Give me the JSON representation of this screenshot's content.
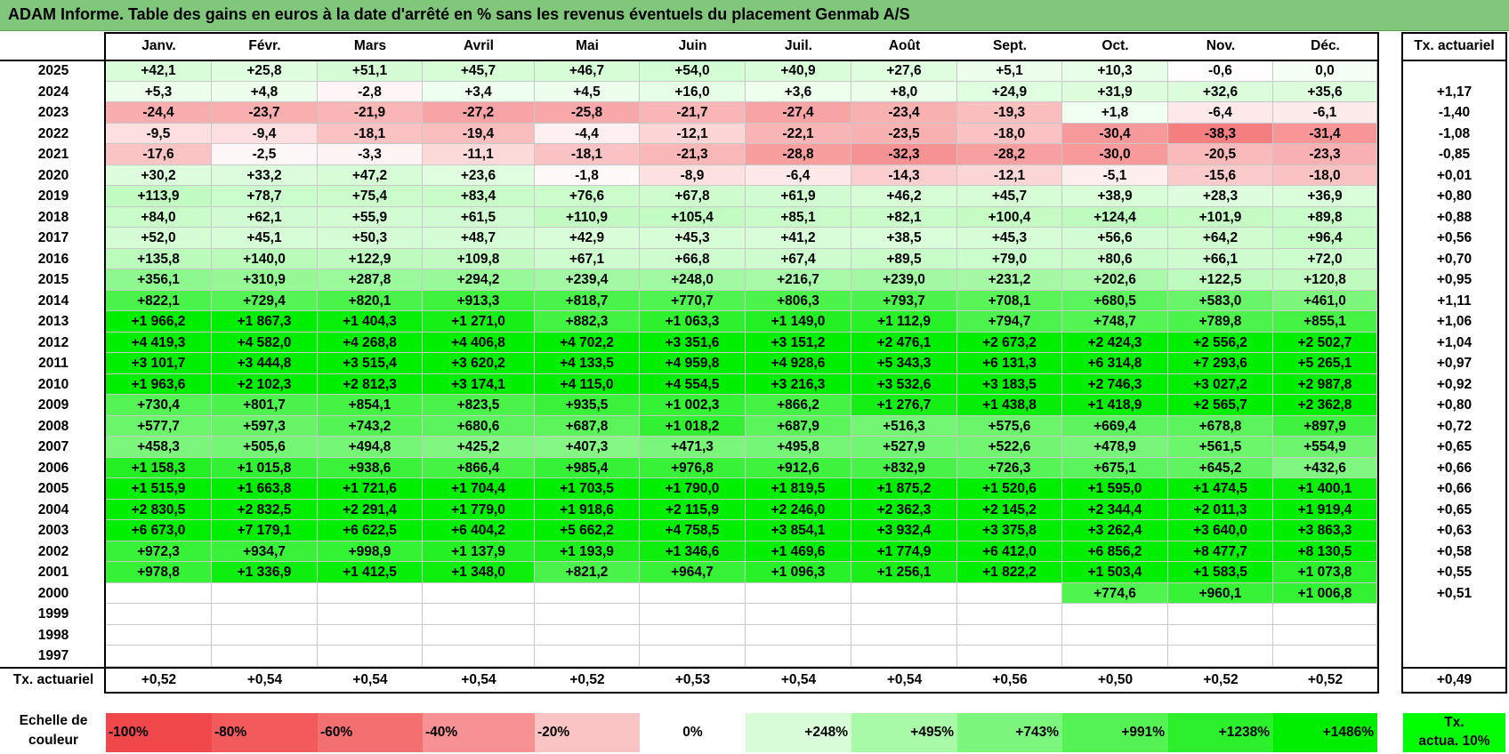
{
  "title": "ADAM Informe. Table des gains en euros à la date d'arrêté en % sans les revenus éventuels du placement Genmab A/S",
  "months": [
    "Janv.",
    "Févr.",
    "Mars",
    "Avril",
    "Mai",
    "Juin",
    "Juil.",
    "Août",
    "Sept.",
    "Oct.",
    "Nov.",
    "Déc."
  ],
  "tx_header": "Tx. actuariel",
  "rows": [
    {
      "year": "2025",
      "values": [
        "+42,1",
        "+25,8",
        "+51,1",
        "+45,7",
        "+46,7",
        "+54,0",
        "+40,9",
        "+27,6",
        "+5,1",
        "+10,3",
        "-0,6",
        "0,0"
      ],
      "tx": ""
    },
    {
      "year": "2024",
      "values": [
        "+5,3",
        "+4,8",
        "-2,8",
        "+3,4",
        "+4,5",
        "+16,0",
        "+3,6",
        "+8,0",
        "+24,9",
        "+31,9",
        "+32,6",
        "+35,6"
      ],
      "tx": "+1,17"
    },
    {
      "year": "2023",
      "values": [
        "-24,4",
        "-23,7",
        "-21,9",
        "-27,2",
        "-25,8",
        "-21,7",
        "-27,4",
        "-23,4",
        "-19,3",
        "+1,8",
        "-6,4",
        "-6,1"
      ],
      "tx": "-1,40"
    },
    {
      "year": "2022",
      "values": [
        "-9,5",
        "-9,4",
        "-18,1",
        "-19,4",
        "-4,4",
        "-12,1",
        "-22,1",
        "-23,5",
        "-18,0",
        "-30,4",
        "-38,3",
        "-31,4"
      ],
      "tx": "-1,08"
    },
    {
      "year": "2021",
      "values": [
        "-17,6",
        "-2,5",
        "-3,3",
        "-11,1",
        "-18,1",
        "-21,3",
        "-28,8",
        "-32,3",
        "-28,2",
        "-30,0",
        "-20,5",
        "-23,3"
      ],
      "tx": "-0,85"
    },
    {
      "year": "2020",
      "values": [
        "+30,2",
        "+33,2",
        "+47,2",
        "+23,6",
        "-1,8",
        "-8,9",
        "-6,4",
        "-14,3",
        "-12,1",
        "-5,1",
        "-15,6",
        "-18,0"
      ],
      "tx": "+0,01"
    },
    {
      "year": "2019",
      "values": [
        "+113,9",
        "+78,7",
        "+75,4",
        "+83,4",
        "+76,6",
        "+67,8",
        "+61,9",
        "+46,2",
        "+45,7",
        "+38,9",
        "+28,3",
        "+36,9"
      ],
      "tx": "+0,80"
    },
    {
      "year": "2018",
      "values": [
        "+84,0",
        "+62,1",
        "+55,9",
        "+61,5",
        "+110,9",
        "+105,4",
        "+85,1",
        "+82,1",
        "+100,4",
        "+124,4",
        "+101,9",
        "+89,8"
      ],
      "tx": "+0,88"
    },
    {
      "year": "2017",
      "values": [
        "+52,0",
        "+45,1",
        "+50,3",
        "+48,7",
        "+42,9",
        "+45,3",
        "+41,2",
        "+38,5",
        "+45,3",
        "+56,6",
        "+64,2",
        "+96,4"
      ],
      "tx": "+0,56"
    },
    {
      "year": "2016",
      "values": [
        "+135,8",
        "+140,0",
        "+122,9",
        "+109,8",
        "+67,1",
        "+66,8",
        "+67,4",
        "+89,5",
        "+79,0",
        "+80,6",
        "+66,1",
        "+72,0"
      ],
      "tx": "+0,70"
    },
    {
      "year": "2015",
      "values": [
        "+356,1",
        "+310,9",
        "+287,8",
        "+294,2",
        "+239,4",
        "+248,0",
        "+216,7",
        "+239,0",
        "+231,2",
        "+202,6",
        "+122,5",
        "+120,8"
      ],
      "tx": "+0,95"
    },
    {
      "year": "2014",
      "values": [
        "+822,1",
        "+729,4",
        "+820,1",
        "+913,3",
        "+818,7",
        "+770,7",
        "+806,3",
        "+793,7",
        "+708,1",
        "+680,5",
        "+583,0",
        "+461,0"
      ],
      "tx": "+1,11"
    },
    {
      "year": "2013",
      "values": [
        "+1 966,2",
        "+1 867,3",
        "+1 404,3",
        "+1 271,0",
        "+882,3",
        "+1 063,3",
        "+1 149,0",
        "+1 112,9",
        "+794,7",
        "+748,7",
        "+789,8",
        "+855,1"
      ],
      "tx": "+1,06"
    },
    {
      "year": "2012",
      "values": [
        "+4 419,3",
        "+4 582,0",
        "+4 268,8",
        "+4 406,8",
        "+4 702,2",
        "+3 351,6",
        "+3 151,2",
        "+2 476,1",
        "+2 673,2",
        "+2 424,3",
        "+2 556,2",
        "+2 502,7"
      ],
      "tx": "+1,04"
    },
    {
      "year": "2011",
      "values": [
        "+3 101,7",
        "+3 444,8",
        "+3 515,4",
        "+3 620,2",
        "+4 133,5",
        "+4 959,8",
        "+4 928,6",
        "+5 343,3",
        "+6 131,3",
        "+6 314,8",
        "+7 293,6",
        "+5 265,1"
      ],
      "tx": "+0,97"
    },
    {
      "year": "2010",
      "values": [
        "+1 963,6",
        "+2 102,3",
        "+2 812,3",
        "+3 174,1",
        "+4 115,0",
        "+4 554,5",
        "+3 216,3",
        "+3 532,6",
        "+3 183,5",
        "+2 746,3",
        "+3 027,2",
        "+2 987,8"
      ],
      "tx": "+0,92"
    },
    {
      "year": "2009",
      "values": [
        "+730,4",
        "+801,7",
        "+854,1",
        "+823,5",
        "+935,5",
        "+1 002,3",
        "+866,2",
        "+1 276,7",
        "+1 438,8",
        "+1 418,9",
        "+2 565,7",
        "+2 362,8"
      ],
      "tx": "+0,80"
    },
    {
      "year": "2008",
      "values": [
        "+577,7",
        "+597,3",
        "+743,2",
        "+680,6",
        "+687,8",
        "+1 018,2",
        "+687,9",
        "+516,3",
        "+575,6",
        "+669,4",
        "+678,8",
        "+897,9"
      ],
      "tx": "+0,72"
    },
    {
      "year": "2007",
      "values": [
        "+458,3",
        "+505,6",
        "+494,8",
        "+425,2",
        "+407,3",
        "+471,3",
        "+495,8",
        "+527,9",
        "+522,6",
        "+478,9",
        "+561,5",
        "+554,9"
      ],
      "tx": "+0,65"
    },
    {
      "year": "2006",
      "values": [
        "+1 158,3",
        "+1 015,8",
        "+938,6",
        "+866,4",
        "+985,4",
        "+976,8",
        "+912,6",
        "+832,9",
        "+726,3",
        "+675,1",
        "+645,2",
        "+432,6"
      ],
      "tx": "+0,66"
    },
    {
      "year": "2005",
      "values": [
        "+1 515,9",
        "+1 663,8",
        "+1 721,6",
        "+1 704,4",
        "+1 703,5",
        "+1 790,0",
        "+1 819,5",
        "+1 875,2",
        "+1 520,6",
        "+1 595,0",
        "+1 474,5",
        "+1 400,1"
      ],
      "tx": "+0,66"
    },
    {
      "year": "2004",
      "values": [
        "+2 830,5",
        "+2 832,5",
        "+2 291,4",
        "+1 779,0",
        "+1 918,6",
        "+2 115,9",
        "+2 246,0",
        "+2 362,3",
        "+2 145,2",
        "+2 344,4",
        "+2 011,3",
        "+1 919,4"
      ],
      "tx": "+0,65"
    },
    {
      "year": "2003",
      "values": [
        "+6 673,0",
        "+7 179,1",
        "+6 622,5",
        "+6 404,2",
        "+5 662,2",
        "+4 758,5",
        "+3 854,1",
        "+3 932,4",
        "+3 375,8",
        "+3 262,4",
        "+3 640,0",
        "+3 863,3"
      ],
      "tx": "+0,63"
    },
    {
      "year": "2002",
      "values": [
        "+972,3",
        "+934,7",
        "+998,9",
        "+1 137,9",
        "+1 193,9",
        "+1 346,6",
        "+1 469,6",
        "+1 774,9",
        "+6 412,0",
        "+6 856,2",
        "+8 477,7",
        "+8 130,5"
      ],
      "tx": "+0,58"
    },
    {
      "year": "2001",
      "values": [
        "+978,8",
        "+1 336,9",
        "+1 412,5",
        "+1 348,0",
        "+821,2",
        "+964,7",
        "+1 096,3",
        "+1 256,1",
        "+1 822,2",
        "+1 503,4",
        "+1 583,5",
        "+1 073,8"
      ],
      "tx": "+0,55"
    },
    {
      "year": "2000",
      "values": [
        "",
        "",
        "",
        "",
        "",
        "",
        "",
        "",
        "",
        "+774,6",
        "+960,1",
        "+1 006,8"
      ],
      "tx": "+0,51"
    },
    {
      "year": "1999",
      "values": [
        "",
        "",
        "",
        "",
        "",
        "",
        "",
        "",
        "",
        "",
        "",
        ""
      ],
      "tx": ""
    },
    {
      "year": "1998",
      "values": [
        "",
        "",
        "",
        "",
        "",
        "",
        "",
        "",
        "",
        "",
        "",
        ""
      ],
      "tx": ""
    },
    {
      "year": "1997",
      "values": [
        "",
        "",
        "",
        "",
        "",
        "",
        "",
        "",
        "",
        "",
        "",
        ""
      ],
      "tx": ""
    }
  ],
  "tx_row": {
    "label": "Tx. actuariel",
    "values": [
      "+0,52",
      "+0,54",
      "+0,54",
      "+0,54",
      "+0,52",
      "+0,53",
      "+0,54",
      "+0,54",
      "+0,56",
      "+0,50",
      "+0,52",
      "+0,52"
    ],
    "total": "+0,49"
  },
  "legend": {
    "label_line1": "Echelle de",
    "label_line2": "couleur",
    "steps": [
      {
        "text": "-100%",
        "color": "#f0474a",
        "align": "left"
      },
      {
        "text": "-80%",
        "color": "#f25a5c",
        "align": "left"
      },
      {
        "text": "-60%",
        "color": "#f46f70",
        "align": "left"
      },
      {
        "text": "-40%",
        "color": "#f79193",
        "align": "left"
      },
      {
        "text": "-20%",
        "color": "#fac4c5",
        "align": "left"
      },
      {
        "text": "0%",
        "color": "#ffffff",
        "align": "center"
      },
      {
        "text": "+248%",
        "color": "#d8fcd8",
        "align": "right"
      },
      {
        "text": "+495%",
        "color": "#a8f9a8",
        "align": "right"
      },
      {
        "text": "+743%",
        "color": "#7cf67c",
        "align": "right"
      },
      {
        "text": "+991%",
        "color": "#55f255",
        "align": "right"
      },
      {
        "text": "+1238%",
        "color": "#2cf02c",
        "align": "right"
      },
      {
        "text": "+1486%",
        "color": "#00ee00",
        "align": "right"
      }
    ],
    "tx_line1": "Tx.",
    "tx_line2": "actua. 10%"
  }
}
